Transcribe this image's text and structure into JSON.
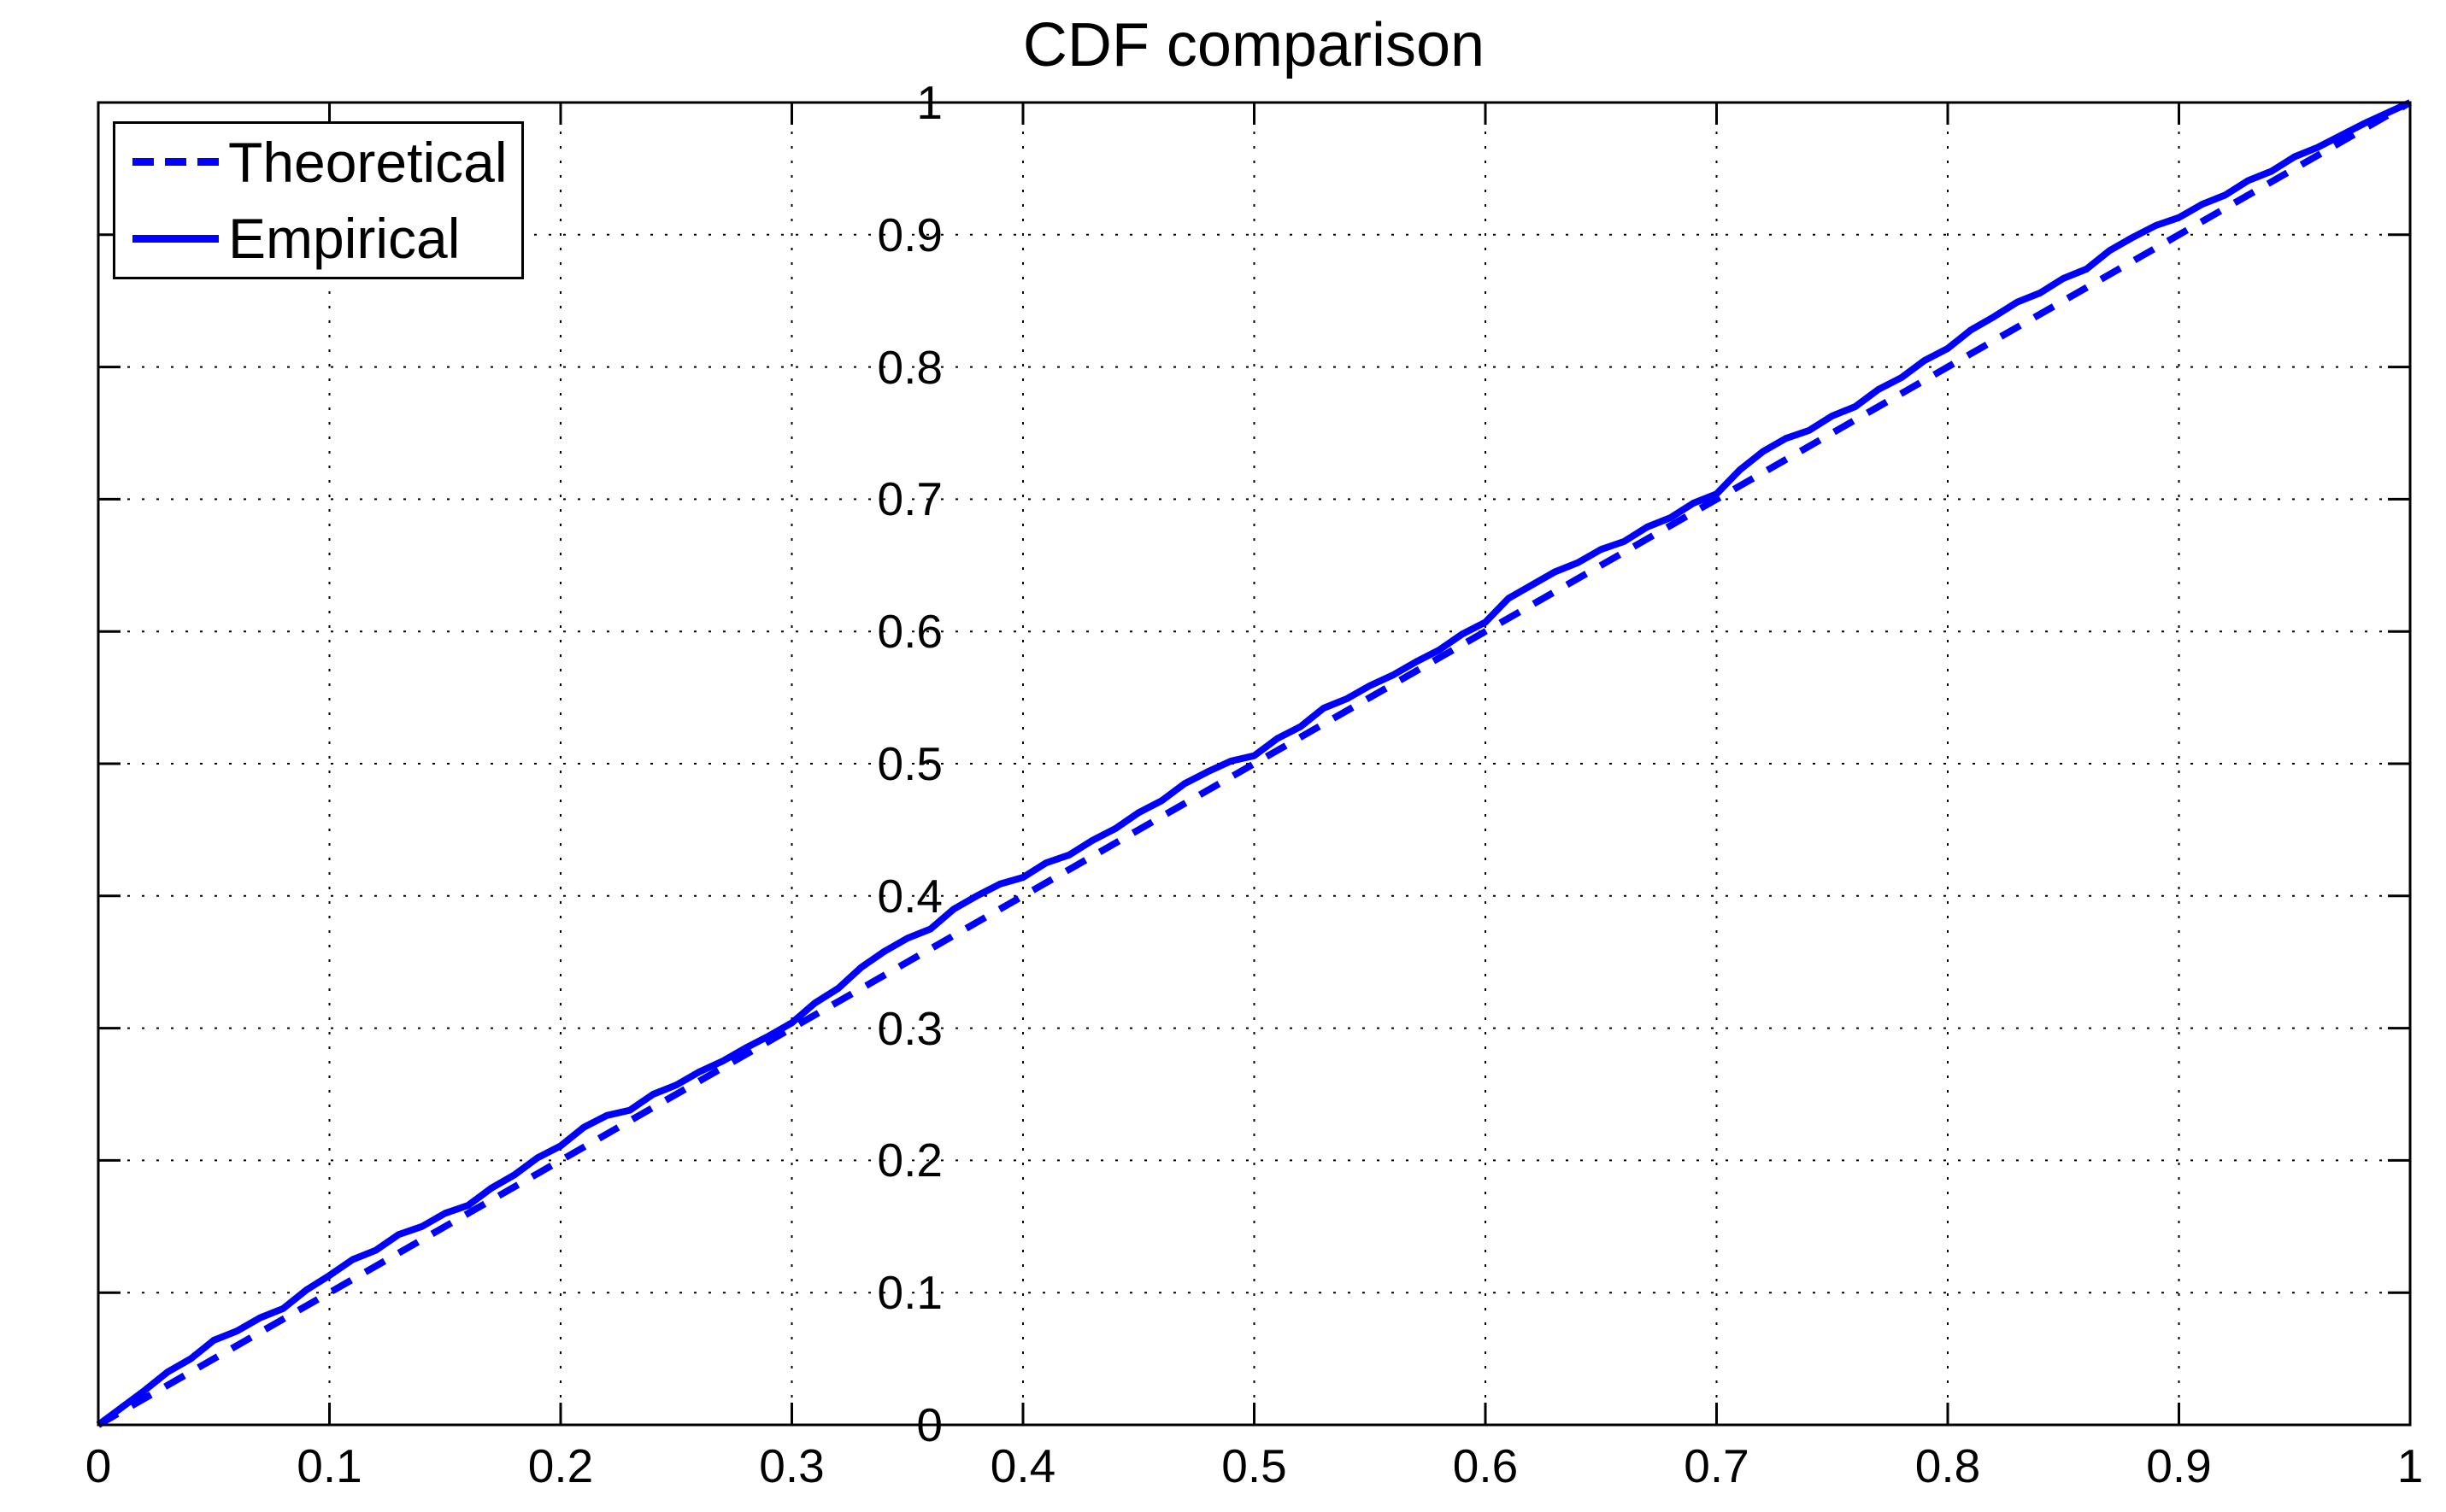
{
  "figure": {
    "title": "CDF comparison",
    "background": "#FFFFFF"
  },
  "colors": {
    "series_color": "#0000FF",
    "axis_color": "#000000",
    "grid_color": "#000000",
    "text_color": "#000000",
    "legend_background": "#FFFFFF"
  },
  "legend": {
    "position": "top-left",
    "items": [
      {
        "label": "Theoretical",
        "line_style": "dashed",
        "color": "#0000FF"
      },
      {
        "label": "Empirical",
        "line_style": "solid",
        "color": "#0000FF"
      }
    ]
  },
  "chart_data": {
    "type": "line",
    "title": "CDF comparison",
    "xlabel": "",
    "ylabel": "",
    "xlim": [
      0,
      1
    ],
    "ylim": [
      0,
      1
    ],
    "grid": "dotted",
    "legend_position": "top-left",
    "xtick_values": [
      0,
      0.1,
      0.2,
      0.3,
      0.4,
      0.5,
      0.6,
      0.7,
      0.8,
      0.9,
      1
    ],
    "xtick_labels": [
      "0",
      "0.1",
      "0.2",
      "0.3",
      "0.4",
      "0.5",
      "0.6",
      "0.7",
      "0.8",
      "0.9",
      "1"
    ],
    "ytick_values": [
      0,
      0.1,
      0.2,
      0.3,
      0.4,
      0.5,
      0.6,
      0.7,
      0.8,
      0.9,
      1
    ],
    "ytick_labels": [
      "0",
      "0.1",
      "0.2",
      "0.3",
      "0.4",
      "0.5",
      "0.6",
      "0.7",
      "0.8",
      "0.9",
      "1"
    ],
    "series": [
      {
        "name": "Theoretical",
        "line_style": "dashed",
        "color": "#0000FF",
        "points": [
          [
            0,
            0
          ],
          [
            1,
            1
          ]
        ]
      },
      {
        "name": "Empirical",
        "line_style": "solid",
        "color": "#0000FF",
        "points": [
          [
            0,
            0
          ],
          [
            0.01,
            0.013
          ],
          [
            0.02,
            0.026
          ],
          [
            0.03,
            0.04
          ],
          [
            0.04,
            0.05
          ],
          [
            0.05,
            0.064
          ],
          [
            0.06,
            0.071
          ],
          [
            0.07,
            0.081
          ],
          [
            0.08,
            0.088
          ],
          [
            0.09,
            0.102
          ],
          [
            0.1,
            0.113
          ],
          [
            0.11,
            0.125
          ],
          [
            0.12,
            0.132
          ],
          [
            0.13,
            0.144
          ],
          [
            0.14,
            0.15
          ],
          [
            0.15,
            0.16
          ],
          [
            0.16,
            0.166
          ],
          [
            0.17,
            0.179
          ],
          [
            0.18,
            0.189
          ],
          [
            0.19,
            0.202
          ],
          [
            0.2,
            0.211
          ],
          [
            0.21,
            0.225
          ],
          [
            0.22,
            0.234
          ],
          [
            0.23,
            0.238
          ],
          [
            0.24,
            0.25
          ],
          [
            0.25,
            0.257
          ],
          [
            0.26,
            0.267
          ],
          [
            0.27,
            0.275
          ],
          [
            0.28,
            0.285
          ],
          [
            0.29,
            0.294
          ],
          [
            0.3,
            0.304
          ],
          [
            0.31,
            0.319
          ],
          [
            0.32,
            0.33
          ],
          [
            0.33,
            0.346
          ],
          [
            0.34,
            0.358
          ],
          [
            0.35,
            0.368
          ],
          [
            0.36,
            0.375
          ],
          [
            0.37,
            0.39
          ],
          [
            0.38,
            0.4
          ],
          [
            0.39,
            0.409
          ],
          [
            0.4,
            0.414
          ],
          [
            0.41,
            0.425
          ],
          [
            0.42,
            0.431
          ],
          [
            0.43,
            0.442
          ],
          [
            0.44,
            0.451
          ],
          [
            0.45,
            0.463
          ],
          [
            0.46,
            0.472
          ],
          [
            0.47,
            0.485
          ],
          [
            0.48,
            0.494
          ],
          [
            0.49,
            0.502
          ],
          [
            0.5,
            0.506
          ],
          [
            0.51,
            0.519
          ],
          [
            0.52,
            0.528
          ],
          [
            0.53,
            0.542
          ],
          [
            0.54,
            0.549
          ],
          [
            0.55,
            0.559
          ],
          [
            0.56,
            0.567
          ],
          [
            0.57,
            0.577
          ],
          [
            0.58,
            0.586
          ],
          [
            0.59,
            0.598
          ],
          [
            0.6,
            0.607
          ],
          [
            0.61,
            0.625
          ],
          [
            0.62,
            0.635
          ],
          [
            0.63,
            0.645
          ],
          [
            0.64,
            0.652
          ],
          [
            0.65,
            0.662
          ],
          [
            0.66,
            0.668
          ],
          [
            0.67,
            0.679
          ],
          [
            0.68,
            0.686
          ],
          [
            0.69,
            0.697
          ],
          [
            0.7,
            0.704
          ],
          [
            0.71,
            0.722
          ],
          [
            0.72,
            0.736
          ],
          [
            0.73,
            0.746
          ],
          [
            0.74,
            0.752
          ],
          [
            0.75,
            0.763
          ],
          [
            0.76,
            0.77
          ],
          [
            0.77,
            0.783
          ],
          [
            0.78,
            0.792
          ],
          [
            0.79,
            0.805
          ],
          [
            0.8,
            0.814
          ],
          [
            0.81,
            0.828
          ],
          [
            0.82,
            0.838
          ],
          [
            0.83,
            0.849
          ],
          [
            0.84,
            0.856
          ],
          [
            0.85,
            0.867
          ],
          [
            0.86,
            0.874
          ],
          [
            0.87,
            0.888
          ],
          [
            0.88,
            0.898
          ],
          [
            0.89,
            0.907
          ],
          [
            0.9,
            0.913
          ],
          [
            0.91,
            0.923
          ],
          [
            0.92,
            0.93
          ],
          [
            0.93,
            0.941
          ],
          [
            0.94,
            0.948
          ],
          [
            0.95,
            0.959
          ],
          [
            0.96,
            0.966
          ],
          [
            0.97,
            0.975
          ],
          [
            0.98,
            0.984
          ],
          [
            0.99,
            0.992
          ],
          [
            1,
            1
          ]
        ]
      }
    ]
  }
}
